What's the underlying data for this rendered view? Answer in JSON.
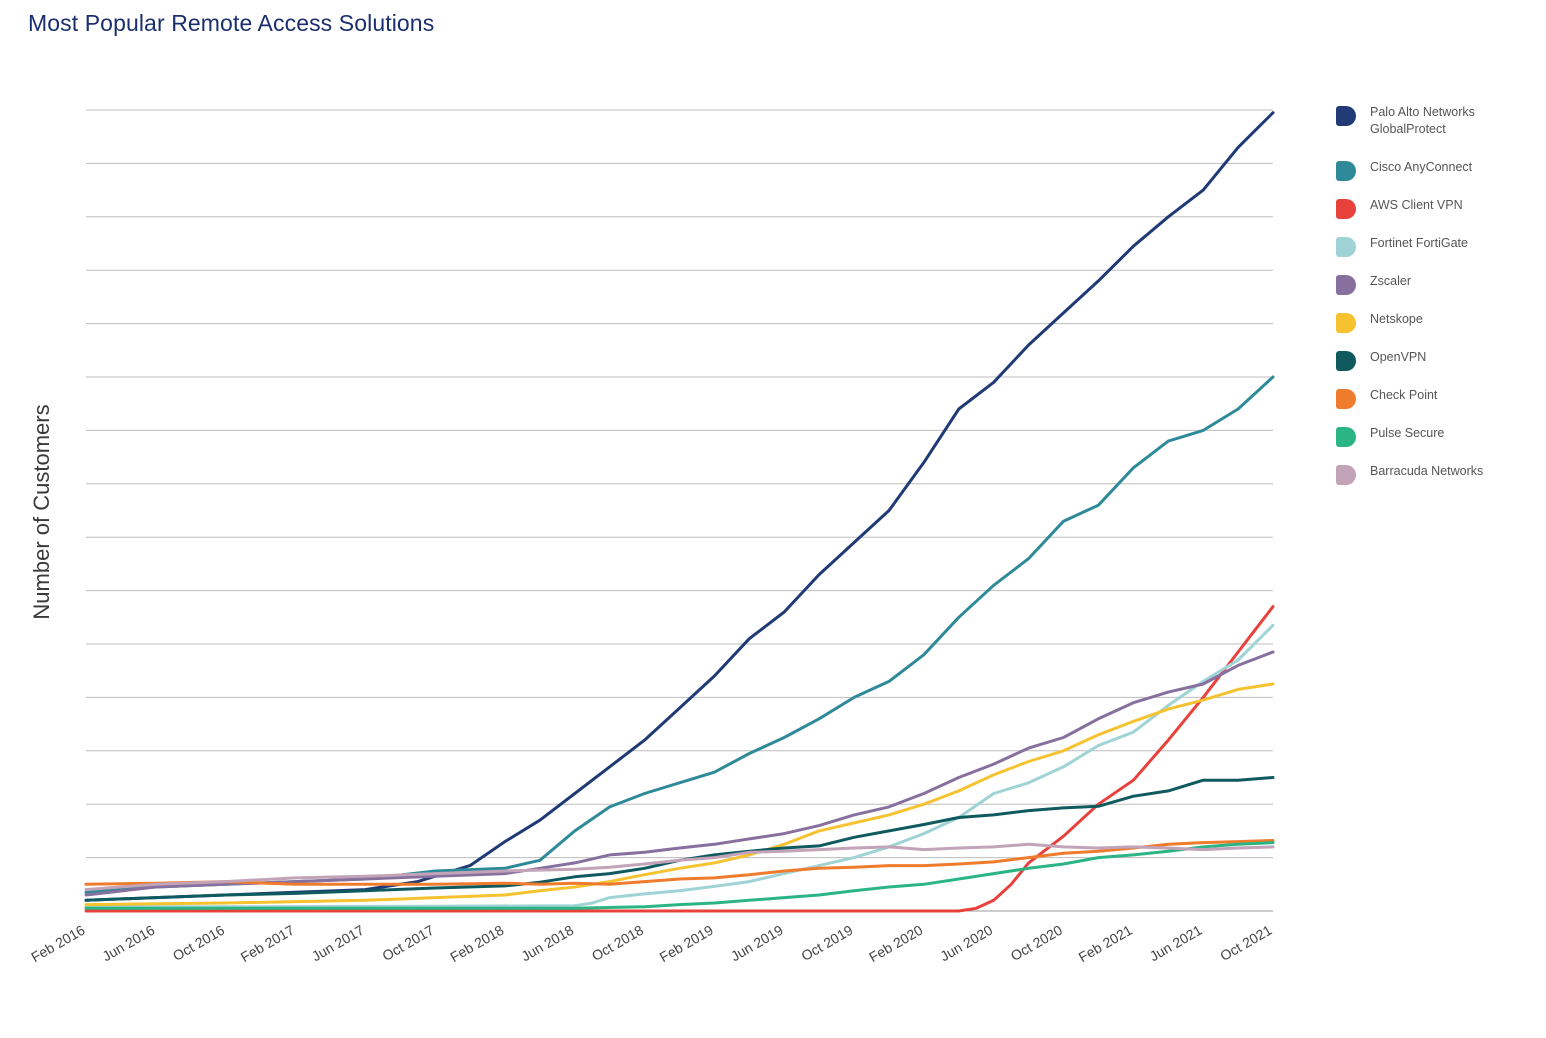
{
  "title": "Most Popular Remote Access Solutions",
  "chart_data": {
    "type": "line",
    "title": "Most Popular Remote Access Solutions",
    "xlabel": "",
    "ylabel": "Number of Customers",
    "ylim": [
      0,
      15
    ],
    "y_ticks": [
      0,
      1,
      2,
      3,
      4,
      5,
      6,
      7,
      8,
      9,
      10,
      11,
      12,
      13,
      14,
      15
    ],
    "y_tick_labels_shown": false,
    "grid": true,
    "legend_position": "right",
    "x_range": [
      0,
      68
    ],
    "x_ticks": [
      0,
      4,
      8,
      12,
      16,
      20,
      24,
      28,
      32,
      36,
      40,
      44,
      48,
      52,
      56,
      60,
      64,
      68
    ],
    "x_tick_labels": [
      "Feb 2016",
      "Jun 2016",
      "Oct 2016",
      "Feb 2017",
      "Jun 2017",
      "Oct 2017",
      "Feb 2018",
      "Jun 2018",
      "Oct 2018",
      "Feb 2019",
      "Jun 2019",
      "Oct 2019",
      "Feb 2020",
      "Jun 2020",
      "Oct 2020",
      "Feb 2021",
      "Jun 2021",
      "Oct 2021"
    ],
    "series": [
      {
        "name": "Palo Alto Networks GlobalProtect",
        "color": "#1f3a75",
        "points": [
          [
            0,
            0.2
          ],
          [
            4,
            0.25
          ],
          [
            8,
            0.3
          ],
          [
            12,
            0.35
          ],
          [
            16,
            0.4
          ],
          [
            19,
            0.55
          ],
          [
            22,
            0.85
          ],
          [
            24,
            1.3
          ],
          [
            26,
            1.7
          ],
          [
            28,
            2.2
          ],
          [
            30,
            2.7
          ],
          [
            32,
            3.2
          ],
          [
            34,
            3.8
          ],
          [
            36,
            4.4
          ],
          [
            38,
            5.1
          ],
          [
            40,
            5.6
          ],
          [
            42,
            6.3
          ],
          [
            44,
            6.9
          ],
          [
            46,
            7.5
          ],
          [
            48,
            8.4
          ],
          [
            50,
            9.4
          ],
          [
            52,
            9.9
          ],
          [
            54,
            10.6
          ],
          [
            56,
            11.2
          ],
          [
            58,
            11.8
          ],
          [
            60,
            12.45
          ],
          [
            62,
            13.0
          ],
          [
            64,
            13.5
          ],
          [
            66,
            14.3
          ],
          [
            68,
            14.95
          ]
        ]
      },
      {
        "name": "Cisco AnyConnect",
        "color": "#2e8a98",
        "points": [
          [
            0,
            0.35
          ],
          [
            4,
            0.45
          ],
          [
            8,
            0.5
          ],
          [
            12,
            0.55
          ],
          [
            16,
            0.6
          ],
          [
            20,
            0.75
          ],
          [
            24,
            0.8
          ],
          [
            26,
            0.95
          ],
          [
            28,
            1.5
          ],
          [
            30,
            1.95
          ],
          [
            32,
            2.2
          ],
          [
            34,
            2.4
          ],
          [
            36,
            2.6
          ],
          [
            38,
            2.95
          ],
          [
            40,
            3.25
          ],
          [
            42,
            3.6
          ],
          [
            44,
            4.0
          ],
          [
            46,
            4.3
          ],
          [
            48,
            4.8
          ],
          [
            50,
            5.5
          ],
          [
            52,
            6.1
          ],
          [
            54,
            6.6
          ],
          [
            56,
            7.3
          ],
          [
            58,
            7.6
          ],
          [
            60,
            8.3
          ],
          [
            62,
            8.8
          ],
          [
            64,
            9.0
          ],
          [
            66,
            9.4
          ],
          [
            68,
            10.0
          ]
        ]
      },
      {
        "name": "AWS Client VPN",
        "color": "#e8413b",
        "points": [
          [
            0,
            0.0
          ],
          [
            20,
            0.0
          ],
          [
            30,
            0.0
          ],
          [
            40,
            0.0
          ],
          [
            50,
            0.0
          ],
          [
            51,
            0.05
          ],
          [
            52,
            0.2
          ],
          [
            53,
            0.5
          ],
          [
            54,
            0.9
          ],
          [
            56,
            1.4
          ],
          [
            58,
            2.0
          ],
          [
            60,
            2.45
          ],
          [
            62,
            3.2
          ],
          [
            64,
            4.0
          ],
          [
            66,
            4.85
          ],
          [
            68,
            5.7
          ]
        ]
      },
      {
        "name": "Fortinet FortiGate",
        "color": "#9fd3d6",
        "points": [
          [
            0,
            0.08
          ],
          [
            10,
            0.08
          ],
          [
            20,
            0.09
          ],
          [
            28,
            0.1
          ],
          [
            29,
            0.15
          ],
          [
            30,
            0.25
          ],
          [
            32,
            0.32
          ],
          [
            34,
            0.38
          ],
          [
            36,
            0.46
          ],
          [
            38,
            0.55
          ],
          [
            40,
            0.7
          ],
          [
            42,
            0.85
          ],
          [
            44,
            1.0
          ],
          [
            46,
            1.2
          ],
          [
            48,
            1.45
          ],
          [
            50,
            1.75
          ],
          [
            52,
            2.2
          ],
          [
            54,
            2.4
          ],
          [
            56,
            2.7
          ],
          [
            58,
            3.1
          ],
          [
            60,
            3.35
          ],
          [
            62,
            3.85
          ],
          [
            64,
            4.3
          ],
          [
            66,
            4.7
          ],
          [
            68,
            5.35
          ]
        ]
      },
      {
        "name": "Zscaler",
        "color": "#87709e",
        "points": [
          [
            0,
            0.3
          ],
          [
            4,
            0.45
          ],
          [
            8,
            0.5
          ],
          [
            12,
            0.55
          ],
          [
            16,
            0.6
          ],
          [
            20,
            0.65
          ],
          [
            24,
            0.7
          ],
          [
            26,
            0.8
          ],
          [
            28,
            0.9
          ],
          [
            30,
            1.05
          ],
          [
            32,
            1.1
          ],
          [
            34,
            1.18
          ],
          [
            36,
            1.25
          ],
          [
            38,
            1.35
          ],
          [
            40,
            1.45
          ],
          [
            42,
            1.6
          ],
          [
            44,
            1.8
          ],
          [
            46,
            1.95
          ],
          [
            48,
            2.2
          ],
          [
            50,
            2.5
          ],
          [
            52,
            2.75
          ],
          [
            54,
            3.05
          ],
          [
            56,
            3.25
          ],
          [
            58,
            3.6
          ],
          [
            60,
            3.9
          ],
          [
            62,
            4.1
          ],
          [
            64,
            4.25
          ],
          [
            66,
            4.6
          ],
          [
            68,
            4.85
          ]
        ]
      },
      {
        "name": "Netskope",
        "color": "#f6c22f",
        "points": [
          [
            0,
            0.12
          ],
          [
            8,
            0.15
          ],
          [
            16,
            0.2
          ],
          [
            20,
            0.25
          ],
          [
            24,
            0.3
          ],
          [
            26,
            0.38
          ],
          [
            28,
            0.45
          ],
          [
            30,
            0.55
          ],
          [
            32,
            0.68
          ],
          [
            34,
            0.8
          ],
          [
            36,
            0.9
          ],
          [
            38,
            1.05
          ],
          [
            40,
            1.25
          ],
          [
            42,
            1.5
          ],
          [
            44,
            1.65
          ],
          [
            46,
            1.8
          ],
          [
            48,
            2.0
          ],
          [
            50,
            2.25
          ],
          [
            52,
            2.55
          ],
          [
            54,
            2.8
          ],
          [
            56,
            3.0
          ],
          [
            58,
            3.3
          ],
          [
            60,
            3.55
          ],
          [
            62,
            3.78
          ],
          [
            64,
            3.95
          ],
          [
            66,
            4.15
          ],
          [
            68,
            4.25
          ]
        ]
      },
      {
        "name": "OpenVPN",
        "color": "#0f5a5f",
        "points": [
          [
            0,
            0.2
          ],
          [
            4,
            0.25
          ],
          [
            8,
            0.3
          ],
          [
            12,
            0.33
          ],
          [
            16,
            0.38
          ],
          [
            20,
            0.43
          ],
          [
            24,
            0.47
          ],
          [
            26,
            0.54
          ],
          [
            28,
            0.64
          ],
          [
            30,
            0.7
          ],
          [
            32,
            0.8
          ],
          [
            34,
            0.95
          ],
          [
            36,
            1.05
          ],
          [
            38,
            1.12
          ],
          [
            40,
            1.18
          ],
          [
            42,
            1.22
          ],
          [
            44,
            1.38
          ],
          [
            46,
            1.5
          ],
          [
            48,
            1.62
          ],
          [
            50,
            1.75
          ],
          [
            52,
            1.8
          ],
          [
            54,
            1.88
          ],
          [
            56,
            1.93
          ],
          [
            58,
            1.96
          ],
          [
            60,
            2.15
          ],
          [
            62,
            2.25
          ],
          [
            64,
            2.45
          ],
          [
            66,
            2.45
          ],
          [
            68,
            2.5
          ]
        ]
      },
      {
        "name": "Check Point",
        "color": "#ef7c2c",
        "points": [
          [
            0,
            0.5
          ],
          [
            4,
            0.52
          ],
          [
            8,
            0.55
          ],
          [
            12,
            0.5
          ],
          [
            16,
            0.5
          ],
          [
            20,
            0.5
          ],
          [
            24,
            0.52
          ],
          [
            26,
            0.5
          ],
          [
            28,
            0.52
          ],
          [
            30,
            0.5
          ],
          [
            32,
            0.55
          ],
          [
            34,
            0.6
          ],
          [
            36,
            0.62
          ],
          [
            38,
            0.68
          ],
          [
            40,
            0.75
          ],
          [
            42,
            0.8
          ],
          [
            44,
            0.82
          ],
          [
            46,
            0.85
          ],
          [
            48,
            0.85
          ],
          [
            50,
            0.88
          ],
          [
            52,
            0.92
          ],
          [
            54,
            1.0
          ],
          [
            56,
            1.08
          ],
          [
            58,
            1.12
          ],
          [
            60,
            1.18
          ],
          [
            62,
            1.25
          ],
          [
            64,
            1.28
          ],
          [
            66,
            1.3
          ],
          [
            68,
            1.32
          ]
        ]
      },
      {
        "name": "Pulse Secure",
        "color": "#2bb584",
        "points": [
          [
            0,
            0.05
          ],
          [
            10,
            0.05
          ],
          [
            20,
            0.05
          ],
          [
            28,
            0.05
          ],
          [
            32,
            0.08
          ],
          [
            34,
            0.12
          ],
          [
            36,
            0.15
          ],
          [
            38,
            0.2
          ],
          [
            40,
            0.25
          ],
          [
            42,
            0.3
          ],
          [
            44,
            0.38
          ],
          [
            46,
            0.45
          ],
          [
            48,
            0.5
          ],
          [
            50,
            0.6
          ],
          [
            52,
            0.7
          ],
          [
            54,
            0.8
          ],
          [
            56,
            0.88
          ],
          [
            58,
            1.0
          ],
          [
            60,
            1.05
          ],
          [
            62,
            1.12
          ],
          [
            64,
            1.2
          ],
          [
            66,
            1.25
          ],
          [
            68,
            1.28
          ]
        ]
      },
      {
        "name": "Barracuda Networks",
        "color": "#c3a3b7",
        "points": [
          [
            0,
            0.4
          ],
          [
            4,
            0.5
          ],
          [
            8,
            0.55
          ],
          [
            12,
            0.62
          ],
          [
            16,
            0.65
          ],
          [
            20,
            0.7
          ],
          [
            24,
            0.75
          ],
          [
            28,
            0.78
          ],
          [
            30,
            0.82
          ],
          [
            32,
            0.88
          ],
          [
            34,
            0.95
          ],
          [
            36,
            1.0
          ],
          [
            38,
            1.1
          ],
          [
            40,
            1.12
          ],
          [
            42,
            1.15
          ],
          [
            44,
            1.18
          ],
          [
            46,
            1.2
          ],
          [
            48,
            1.15
          ],
          [
            50,
            1.18
          ],
          [
            52,
            1.2
          ],
          [
            54,
            1.25
          ],
          [
            56,
            1.2
          ],
          [
            58,
            1.18
          ],
          [
            60,
            1.2
          ],
          [
            62,
            1.18
          ],
          [
            64,
            1.15
          ],
          [
            66,
            1.18
          ],
          [
            68,
            1.2
          ]
        ]
      }
    ]
  },
  "legend": [
    {
      "label": "Palo Alto Networks GlobalProtect",
      "color": "#1f3a75"
    },
    {
      "label": "Cisco AnyConnect",
      "color": "#2e8a98"
    },
    {
      "label": "AWS Client VPN",
      "color": "#e8413b"
    },
    {
      "label": "Fortinet FortiGate",
      "color": "#9fd3d6"
    },
    {
      "label": "Zscaler",
      "color": "#87709e"
    },
    {
      "label": "Netskope",
      "color": "#f6c22f"
    },
    {
      "label": "OpenVPN",
      "color": "#0f5a5f"
    },
    {
      "label": "Check Point",
      "color": "#ef7c2c"
    },
    {
      "label": "Pulse Secure",
      "color": "#2bb584"
    },
    {
      "label": "Barracuda Networks",
      "color": "#c3a3b7"
    }
  ]
}
